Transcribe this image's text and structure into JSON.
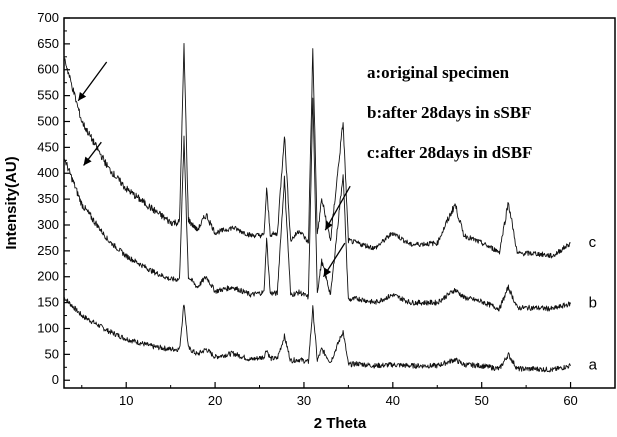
{
  "chart_data": {
    "type": "line",
    "xlabel": "2 Theta",
    "ylabel": "Intensity(AU)",
    "xlim": [
      3,
      65
    ],
    "ylim": [
      -15,
      700
    ],
    "x_ticks": [
      10,
      20,
      30,
      40,
      50,
      60
    ],
    "y_ticks": [
      0,
      50,
      100,
      150,
      200,
      250,
      300,
      350,
      400,
      450,
      500,
      550,
      600,
      650,
      700
    ],
    "grid": false,
    "legend": [
      "a:original specimen",
      "b:after 28days in sSBF",
      "c:after 28days in dSBF"
    ],
    "series": [
      {
        "name": "a",
        "x": [
          3,
          5,
          8,
          10,
          13,
          15,
          16,
          16.5,
          17,
          18,
          19,
          20,
          22,
          24,
          25.5,
          25.8,
          26.2,
          27,
          27.8,
          28.5,
          29.5,
          30.5,
          31,
          31.5,
          32,
          33,
          34.4,
          35,
          36,
          38,
          40,
          42,
          45,
          47,
          48,
          50,
          52,
          53,
          54,
          56,
          58,
          60
        ],
        "y": [
          160,
          125,
          95,
          80,
          65,
          60,
          60,
          150,
          62,
          50,
          60,
          45,
          52,
          40,
          45,
          60,
          42,
          42,
          85,
          38,
          40,
          35,
          140,
          38,
          60,
          35,
          95,
          30,
          32,
          28,
          30,
          28,
          28,
          40,
          30,
          28,
          22,
          50,
          22,
          22,
          20,
          28
        ]
      },
      {
        "name": "b",
        "x": [
          3,
          5,
          8,
          10,
          13,
          15,
          16,
          16.5,
          17,
          18,
          19,
          20,
          22,
          24,
          25.5,
          25.8,
          26.2,
          27,
          27.8,
          28.5,
          29.5,
          30.5,
          31,
          31.5,
          32,
          33,
          34.4,
          35,
          36,
          38,
          40,
          42,
          45,
          47,
          48,
          50,
          52,
          53,
          54,
          56,
          58,
          60
        ],
        "y": [
          430,
          340,
          270,
          240,
          210,
          195,
          195,
          465,
          200,
          180,
          200,
          172,
          180,
          165,
          170,
          275,
          168,
          168,
          390,
          165,
          170,
          160,
          550,
          170,
          230,
          165,
          400,
          155,
          158,
          150,
          165,
          150,
          150,
          175,
          160,
          152,
          138,
          180,
          140,
          140,
          138,
          148
        ]
      },
      {
        "name": "c",
        "x": [
          3,
          5,
          8,
          10,
          13,
          15,
          16,
          16.5,
          17,
          18,
          19,
          20,
          22,
          24,
          25.5,
          25.8,
          26.2,
          27,
          27.8,
          28.5,
          29.5,
          30.5,
          31,
          31.5,
          32,
          33,
          34.4,
          35,
          36,
          38,
          40,
          42,
          45,
          47,
          48,
          50,
          52,
          53,
          54,
          56,
          58,
          60
        ],
        "y": [
          625,
          500,
          410,
          370,
          330,
          305,
          305,
          645,
          310,
          290,
          320,
          285,
          295,
          280,
          280,
          370,
          282,
          282,
          475,
          270,
          290,
          265,
          640,
          280,
          350,
          270,
          500,
          270,
          265,
          255,
          285,
          262,
          265,
          340,
          280,
          265,
          248,
          345,
          245,
          245,
          240,
          265
        ]
      }
    ],
    "curve_labels": [
      {
        "text": "a",
        "series": "a"
      },
      {
        "text": "b",
        "series": "b"
      },
      {
        "text": "c",
        "series": "c"
      }
    ],
    "annotations": [
      {
        "type": "arrow",
        "from": [
          7.8,
          615
        ],
        "to": [
          4.6,
          540
        ]
      },
      {
        "type": "arrow",
        "from": [
          7.2,
          460
        ],
        "to": [
          5.2,
          415
        ]
      },
      {
        "type": "arrow",
        "from": [
          35.2,
          375
        ],
        "to": [
          32.4,
          290
        ]
      },
      {
        "type": "arrow",
        "from": [
          34.6,
          265
        ],
        "to": [
          32.2,
          200
        ]
      }
    ]
  }
}
